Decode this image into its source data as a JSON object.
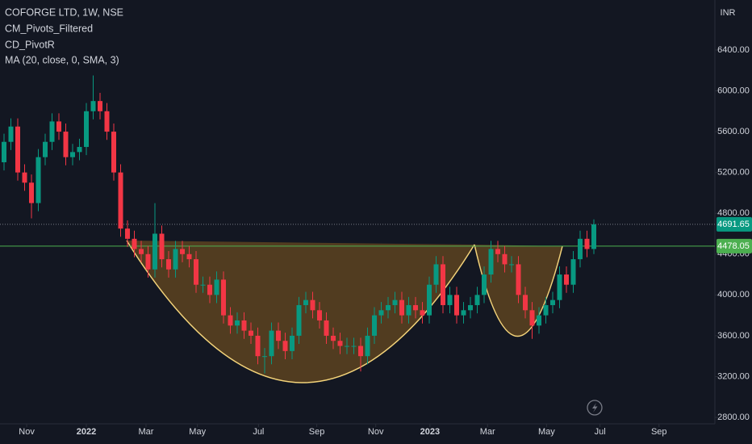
{
  "chart_data": {
    "type": "candlestick",
    "title": "COFORGE LTD, 1W, NSE",
    "indicators": [
      "CM_Pivots_Filtered",
      "CD_PivotR",
      "MA (20, close, 0, SMA, 3)"
    ],
    "currency": "INR",
    "open": [
      5300,
      5500,
      5650,
      5200,
      5100,
      4900,
      5350,
      5500,
      5700,
      5600,
      5350,
      5400,
      5450,
      5800,
      5900,
      5800,
      5600,
      5200,
      4650,
      4550,
      4450,
      4400,
      4250,
      4600,
      4350,
      4250,
      4450,
      4400,
      4350,
      4100,
      4100,
      4000,
      4150,
      3800,
      3700,
      3750,
      3650,
      3600,
      3400,
      3400,
      3650,
      3550,
      3450,
      3600,
      3900,
      3950,
      3850,
      3750,
      3600,
      3550,
      3500,
      3500,
      3500,
      3400,
      3600,
      3800,
      3850,
      3900,
      3950,
      3800,
      3900,
      3850,
      3800,
      4100,
      4300,
      3900,
      4000,
      3800,
      3850,
      3900,
      4000,
      4200,
      4450,
      4400,
      4300,
      4300,
      4000,
      3850,
      3700,
      3800,
      3900,
      3950,
      4200,
      4100,
      4350,
      4550,
      4450
    ],
    "high": [
      5580,
      5730,
      5730,
      5280,
      5180,
      5430,
      5580,
      5780,
      5780,
      5680,
      5480,
      5530,
      5880,
      6150,
      5980,
      5880,
      5680,
      5280,
      4730,
      4630,
      4530,
      4480,
      4900,
      4680,
      4430,
      4530,
      4530,
      4480,
      4430,
      4180,
      4180,
      4230,
      4230,
      3880,
      3830,
      3830,
      3730,
      3680,
      3480,
      3730,
      3730,
      3630,
      3680,
      3980,
      4030,
      4030,
      3930,
      3830,
      3680,
      3630,
      3580,
      3580,
      3580,
      3680,
      3880,
      3930,
      3980,
      4030,
      4030,
      3980,
      3980,
      3930,
      4180,
      4380,
      4380,
      4080,
      4080,
      3930,
      3980,
      4080,
      4280,
      4530,
      4530,
      4480,
      4380,
      4380,
      4080,
      3930,
      3880,
      3980,
      4030,
      4280,
      4280,
      4430,
      4630,
      4630,
      4740
    ],
    "low": [
      5220,
      5420,
      5120,
      5020,
      4750,
      4820,
      5270,
      5420,
      5520,
      5270,
      5270,
      5320,
      5370,
      5720,
      5720,
      5520,
      5120,
      4570,
      4470,
      4370,
      4320,
      4170,
      4170,
      4270,
      4170,
      4170,
      4320,
      4270,
      4020,
      4020,
      3920,
      3920,
      3720,
      3620,
      3620,
      3570,
      3520,
      3320,
      3230,
      3320,
      3470,
      3370,
      3370,
      3520,
      3820,
      3770,
      3670,
      3520,
      3470,
      3420,
      3420,
      3420,
      3250,
      3320,
      3520,
      3720,
      3770,
      3820,
      3720,
      3720,
      3770,
      3720,
      3720,
      4020,
      3820,
      3820,
      3720,
      3720,
      3770,
      3820,
      3920,
      4120,
      4320,
      4220,
      4220,
      3920,
      3770,
      3570,
      3620,
      3720,
      3820,
      3870,
      4020,
      4020,
      4270,
      4370,
      4400
    ],
    "close": [
      5500,
      5650,
      5200,
      5100,
      4900,
      5350,
      5500,
      5700,
      5600,
      5350,
      5400,
      5450,
      5800,
      5900,
      5800,
      5600,
      5200,
      4650,
      4550,
      4450,
      4400,
      4250,
      4600,
      4350,
      4250,
      4450,
      4400,
      4350,
      4100,
      4100,
      4000,
      4150,
      3800,
      3700,
      3750,
      3650,
      3600,
      3400,
      3400,
      3650,
      3550,
      3450,
      3600,
      3900,
      3950,
      3850,
      3750,
      3600,
      3550,
      3500,
      3500,
      3500,
      3400,
      3600,
      3800,
      3850,
      3900,
      3950,
      3800,
      3900,
      3850,
      3800,
      4100,
      4300,
      3900,
      4000,
      3800,
      3850,
      3900,
      4000,
      4200,
      4450,
      4400,
      4300,
      4300,
      4000,
      3850,
      3700,
      3800,
      3900,
      3950,
      4200,
      4100,
      4350,
      4550,
      4450,
      4691.65
    ],
    "up_color": "#089981",
    "down_color": "#f23645",
    "price_lines": [
      {
        "value": 4691.65,
        "color": "#089981",
        "style": "dotted"
      },
      {
        "value": 4478.05,
        "color": "#4caf50",
        "style": "solid"
      }
    ],
    "ylim": [
      2737,
      6890
    ],
    "yticks": [
      {
        "value": 2800,
        "label": "2800.00"
      },
      {
        "value": 3200,
        "label": "3200.00"
      },
      {
        "value": 3600,
        "label": "3600.00"
      },
      {
        "value": 4000,
        "label": "4000.00"
      },
      {
        "value": 4400,
        "label": "4400.00"
      },
      {
        "value": 4800,
        "label": "4800.00"
      },
      {
        "value": 5200,
        "label": "5200.00"
      },
      {
        "value": 5600,
        "label": "5600.00"
      },
      {
        "value": 6000,
        "label": "6000.00"
      },
      {
        "value": 6400,
        "label": "6400.00"
      }
    ],
    "xticks": [
      {
        "value": 3.3,
        "label": "Nov"
      },
      {
        "value": 12,
        "label": "2022"
      },
      {
        "value": 20.7,
        "label": "Mar"
      },
      {
        "value": 28.2,
        "label": "May"
      },
      {
        "value": 37.1,
        "label": "Jul"
      },
      {
        "value": 45.6,
        "label": "Sep"
      },
      {
        "value": 54.2,
        "label": "Nov"
      },
      {
        "value": 62.1,
        "label": "2023"
      },
      {
        "value": 70.5,
        "label": "Mar"
      },
      {
        "value": 79.1,
        "label": "May"
      },
      {
        "value": 86.9,
        "label": "Jul"
      },
      {
        "value": 95.5,
        "label": "Sep"
      }
    ]
  }
}
